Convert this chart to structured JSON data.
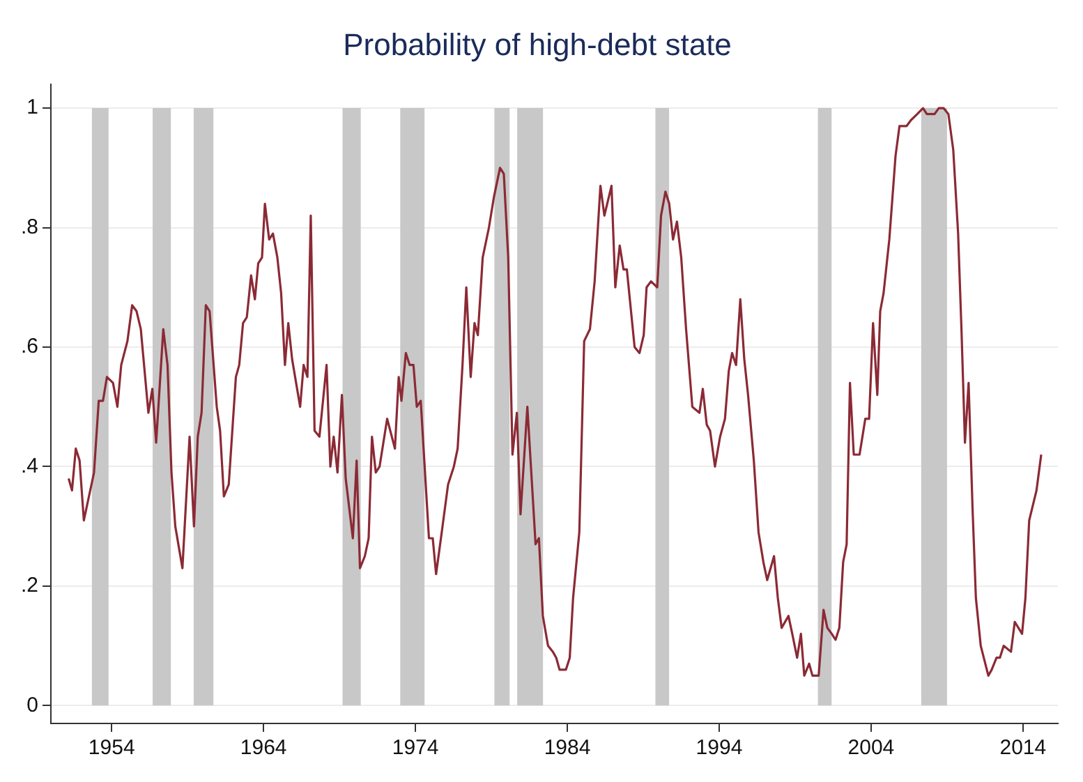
{
  "chart_data": {
    "type": "line",
    "title": "Probability of high-debt state",
    "x": [
      1951.17,
      1951.39,
      1951.64,
      1951.89,
      1952.17,
      1952.84,
      1953.15,
      1953.43,
      1953.69,
      1954.09,
      1954.38,
      1954.63,
      1955.04,
      1955.35,
      1955.64,
      1955.92,
      1956.42,
      1956.68,
      1956.93,
      1957.4,
      1957.68,
      1957.94,
      1958.19,
      1958.66,
      1959.13,
      1959.42,
      1959.67,
      1959.92,
      1960.2,
      1960.45,
      1960.92,
      1961.14,
      1961.39,
      1961.71,
      1962.18,
      1962.4,
      1962.65,
      1962.9,
      1963.18,
      1963.43,
      1963.65,
      1963.9,
      1964.09,
      1964.37,
      1964.62,
      1964.91,
      1965.16,
      1965.41,
      1965.63,
      1965.88,
      1966.41,
      1966.64,
      1966.89,
      1967.11,
      1967.36,
      1967.68,
      1968.15,
      1968.4,
      1968.62,
      1968.87,
      1969.16,
      1969.41,
      1969.88,
      1970.13,
      1970.35,
      1970.67,
      1970.92,
      1971.14,
      1971.39,
      1971.64,
      1972.14,
      1972.65,
      1972.9,
      1973.08,
      1973.37,
      1973.62,
      1973.87,
      1974.09,
      1974.35,
      1974.89,
      1975.14,
      1975.36,
      1975.68,
      1976.15,
      1976.53,
      1976.78,
      1977.1,
      1977.35,
      1977.64,
      1977.89,
      1978.11,
      1978.43,
      1978.84,
      1979.16,
      1979.57,
      1979.82,
      1980.11,
      1980.39,
      1980.68,
      1980.92,
      1981.37,
      1981.91,
      1982.13,
      1982.39,
      1982.73,
      1983.05,
      1983.27,
      1983.49,
      1983.91,
      1984.16,
      1984.38,
      1984.79,
      1985.11,
      1985.49,
      1985.8,
      1986.18,
      1986.44,
      1986.91,
      1987.16,
      1987.45,
      1987.7,
      1987.92,
      1988.43,
      1988.75,
      1989.03,
      1989.22,
      1989.51,
      1989.92,
      1990.17,
      1990.46,
      1990.71,
      1990.96,
      1991.22,
      1991.5,
      1991.82,
      1992.23,
      1992.7,
      1992.92,
      1993.18,
      1993.4,
      1993.72,
      1994.06,
      1994.38,
      1994.63,
      1994.85,
      1995.11,
      1995.39,
      1995.65,
      1995.9,
      1996.28,
      1996.59,
      1996.91,
      1997.16,
      1997.61,
      1997.86,
      1998.11,
      1998.56,
      1998.81,
      1999.13,
      1999.38,
      1999.6,
      1999.92,
      2000.14,
      2000.55,
      2000.87,
      2001.12,
      2001.41,
      2001.66,
      2001.91,
      2002.16,
      2002.39,
      2002.61,
      2002.86,
      2003.24,
      2003.62,
      2003.87,
      2004.13,
      2004.41,
      2004.6,
      2004.82,
      2005.2,
      2005.61,
      2005.87,
      2006.09,
      2006.34,
      2006.63,
      2007.04,
      2007.42,
      2007.67,
      2007.92,
      2008.18,
      2008.46,
      2008.77,
      2009.09,
      2009.41,
      2009.73,
      2009.95,
      2010.18,
      2010.42,
      2010.68,
      2010.9,
      2011.22,
      2011.72,
      2011.94,
      2012.26,
      2012.48,
      2012.73,
      2013.21,
      2013.46,
      2013.94,
      2014.16,
      2014.41,
      2014.89,
      2015.2
    ],
    "series": [
      {
        "color": "#8b2a35",
        "values": [
          0.38,
          0.36,
          0.43,
          0.41,
          0.31,
          0.39,
          0.51,
          0.51,
          0.55,
          0.54,
          0.5,
          0.57,
          0.61,
          0.67,
          0.66,
          0.63,
          0.49,
          0.53,
          0.44,
          0.63,
          0.57,
          0.39,
          0.3,
          0.23,
          0.45,
          0.3,
          0.45,
          0.49,
          0.67,
          0.66,
          0.5,
          0.46,
          0.35,
          0.37,
          0.55,
          0.57,
          0.64,
          0.65,
          0.72,
          0.68,
          0.74,
          0.75,
          0.84,
          0.78,
          0.79,
          0.75,
          0.69,
          0.57,
          0.64,
          0.58,
          0.5,
          0.57,
          0.55,
          0.82,
          0.46,
          0.45,
          0.57,
          0.4,
          0.45,
          0.39,
          0.52,
          0.38,
          0.28,
          0.41,
          0.23,
          0.25,
          0.28,
          0.45,
          0.39,
          0.4,
          0.48,
          0.43,
          0.55,
          0.51,
          0.59,
          0.57,
          0.57,
          0.5,
          0.51,
          0.28,
          0.28,
          0.22,
          0.28,
          0.37,
          0.4,
          0.43,
          0.57,
          0.7,
          0.55,
          0.64,
          0.62,
          0.75,
          0.8,
          0.85,
          0.9,
          0.89,
          0.75,
          0.42,
          0.49,
          0.32,
          0.5,
          0.27,
          0.28,
          0.15,
          0.1,
          0.09,
          0.08,
          0.06,
          0.06,
          0.08,
          0.18,
          0.29,
          0.61,
          0.63,
          0.71,
          0.87,
          0.82,
          0.87,
          0.7,
          0.77,
          0.73,
          0.73,
          0.6,
          0.59,
          0.62,
          0.7,
          0.71,
          0.7,
          0.82,
          0.86,
          0.84,
          0.78,
          0.81,
          0.75,
          0.63,
          0.5,
          0.49,
          0.53,
          0.47,
          0.46,
          0.4,
          0.45,
          0.48,
          0.56,
          0.59,
          0.57,
          0.68,
          0.58,
          0.52,
          0.41,
          0.29,
          0.24,
          0.21,
          0.25,
          0.18,
          0.13,
          0.15,
          0.12,
          0.08,
          0.12,
          0.05,
          0.07,
          0.05,
          0.05,
          0.16,
          0.13,
          0.12,
          0.11,
          0.13,
          0.24,
          0.27,
          0.54,
          0.42,
          0.42,
          0.48,
          0.48,
          0.64,
          0.52,
          0.66,
          0.69,
          0.78,
          0.92,
          0.97,
          0.97,
          0.97,
          0.98,
          0.99,
          1.0,
          0.99,
          0.99,
          0.99,
          1.0,
          1.0,
          0.99,
          0.93,
          0.79,
          0.63,
          0.44,
          0.54,
          0.33,
          0.18,
          0.1,
          0.05,
          0.06,
          0.08,
          0.08,
          0.1,
          0.09,
          0.14,
          0.12,
          0.18,
          0.31,
          0.36,
          0.42
        ]
      }
    ],
    "xlim": [
      1950,
      2016.3
    ],
    "xticks": [
      1954,
      1964,
      1974,
      1984,
      1994,
      2004,
      2014
    ],
    "ylim": [
      -0.03,
      1.04
    ],
    "yticks": [
      0,
      {
        "value": 0.2,
        "label": ".2"
      },
      {
        "value": 0.4,
        "label": ".4"
      },
      {
        "value": 0.6,
        "label": ".6"
      },
      {
        "value": 0.8,
        "label": ".8"
      },
      1
    ],
    "grid": "y",
    "legend": false,
    "marker": "none",
    "line_style": "solid",
    "bands": [
      {
        "axis": "x",
        "from": 1952.7,
        "to": 1953.8,
        "color": "#c8c8c8"
      },
      {
        "axis": "x",
        "from": 1956.7,
        "to": 1957.9,
        "color": "#c8c8c8"
      },
      {
        "axis": "x",
        "from": 1959.4,
        "to": 1960.7,
        "color": "#c8c8c8"
      },
      {
        "axis": "x",
        "from": 1969.2,
        "to": 1970.4,
        "color": "#c8c8c8"
      },
      {
        "axis": "x",
        "from": 1973.0,
        "to": 1974.6,
        "color": "#c8c8c8"
      },
      {
        "axis": "x",
        "from": 1979.2,
        "to": 1980.2,
        "color": "#c8c8c8"
      },
      {
        "axis": "x",
        "from": 1980.7,
        "to": 1982.4,
        "color": "#c8c8c8"
      },
      {
        "axis": "x",
        "from": 1989.8,
        "to": 1990.7,
        "color": "#c8c8c8"
      },
      {
        "axis": "x",
        "from": 2000.5,
        "to": 2001.4,
        "color": "#c8c8c8"
      },
      {
        "axis": "x",
        "from": 2007.3,
        "to": 2009.0,
        "color": "#c8c8c8"
      }
    ]
  }
}
